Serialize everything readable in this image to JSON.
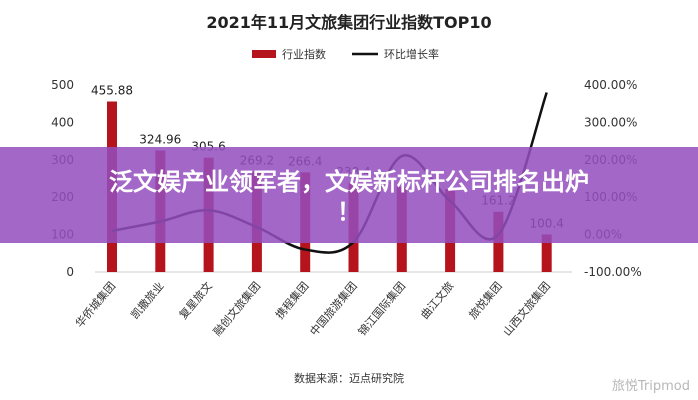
{
  "chart_data": {
    "type": "bar+line",
    "title": "2021年11月文旅集团行业指数TOP10",
    "categories": [
      "华侨城集团",
      "凯撒旅业",
      "复星旅文",
      "融创文旅集团",
      "携程集团",
      "中国旅游集团",
      "锦江国际集团",
      "曲江文旅",
      "旅悦集团",
      "山西文旅集团"
    ],
    "series": [
      {
        "name": "行业指数",
        "kind": "bar",
        "axis": "left",
        "color": "#b5141c",
        "values": [
          455.88,
          324.96,
          305.6,
          269.2,
          266.4,
          238.4,
          228,
          222,
          161.2,
          100.4
        ],
        "labels": [
          "455.88",
          "324.96",
          "305.6",
          "269.2",
          "266.4",
          "238.4",
          "",
          "",
          "161.2",
          "100.4"
        ]
      },
      {
        "name": "环比增长率",
        "kind": "line",
        "axis": "right",
        "color": "#111111",
        "values": [
          10,
          35,
          65,
          20,
          -40,
          -20,
          210,
          90,
          0,
          380
        ]
      }
    ],
    "y_left": {
      "min": 0,
      "max": 500,
      "ticks": [
        "0",
        "100",
        "200",
        "300",
        "400",
        "500"
      ]
    },
    "y_right": {
      "min": -100,
      "max": 400,
      "ticks": [
        "-100.00%",
        "0.00%",
        "100.00%",
        "200.00%",
        "300.00%",
        "400.00%"
      ]
    },
    "source": "数据来源：迈点研究院",
    "legend_position": "top-center",
    "grid": false
  },
  "banner": {
    "line1": "泛文娱产业领军者，文娱新标杆公司排名出炉",
    "line2": "！"
  },
  "watermark": "旅悦Tripmod"
}
